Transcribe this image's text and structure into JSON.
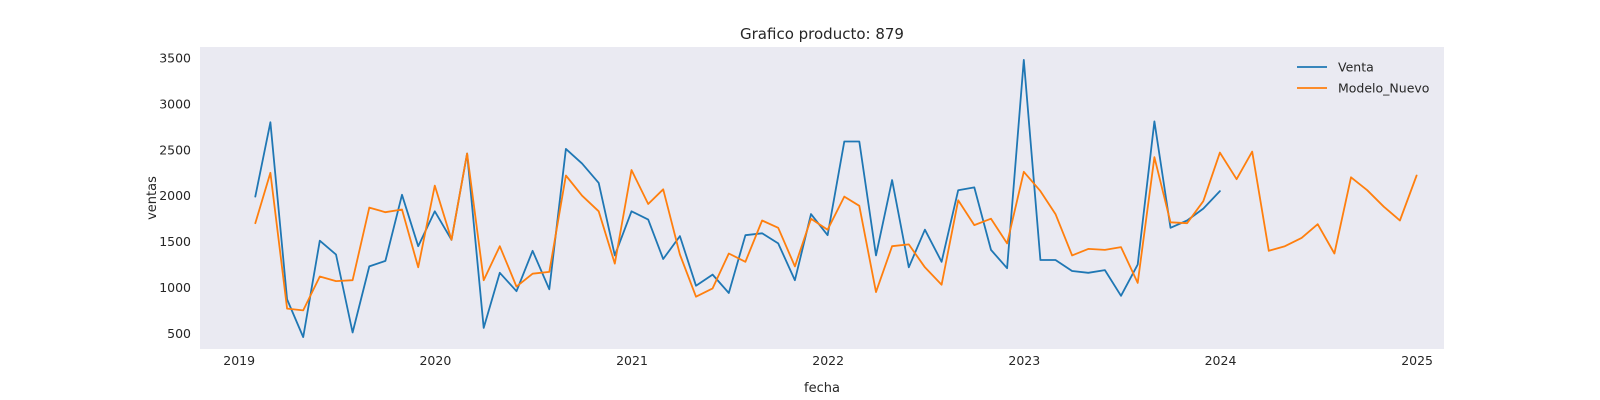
{
  "chart_data": {
    "type": "line",
    "title": "Grafico producto: 879",
    "xlabel": "fecha",
    "ylabel": "ventas",
    "xlim": [
      "2018-10-20",
      "2025-02-20"
    ],
    "ylim": [
      330,
      3620
    ],
    "x_ticks": [
      "2019",
      "2020",
      "2021",
      "2022",
      "2023",
      "2024",
      "2025"
    ],
    "y_ticks": [
      500,
      1000,
      1500,
      2000,
      2500,
      3000,
      3500
    ],
    "grid": false,
    "legend": "top-right",
    "colors": {
      "plot_background": "#eaeaf2",
      "Venta": "#1f77b4",
      "Modelo_Nuevo": "#ff7f0e"
    },
    "series": [
      {
        "name": "Venta",
        "x": [
          "2019-01-31",
          "2019-02-28",
          "2019-03-31",
          "2019-04-30",
          "2019-05-31",
          "2019-06-30",
          "2019-07-31",
          "2019-08-31",
          "2019-09-30",
          "2019-10-31",
          "2019-11-30",
          "2019-12-31",
          "2020-01-31",
          "2020-02-29",
          "2020-03-31",
          "2020-04-30",
          "2020-05-31",
          "2020-06-30",
          "2020-07-31",
          "2020-08-31",
          "2020-09-30",
          "2020-10-31",
          "2020-11-30",
          "2020-12-31",
          "2021-01-31",
          "2021-02-28",
          "2021-03-31",
          "2021-04-30",
          "2021-05-31",
          "2021-06-30",
          "2021-07-31",
          "2021-08-31",
          "2021-09-30",
          "2021-10-31",
          "2021-11-30",
          "2021-12-31",
          "2022-01-31",
          "2022-02-28",
          "2022-03-31",
          "2022-04-30",
          "2022-05-31",
          "2022-06-30",
          "2022-07-31",
          "2022-08-31",
          "2022-09-30",
          "2022-10-31",
          "2022-11-30",
          "2022-12-31",
          "2023-01-31",
          "2023-02-28",
          "2023-03-31",
          "2023-04-30",
          "2023-05-31",
          "2023-06-30",
          "2023-07-31",
          "2023-08-31",
          "2023-09-30",
          "2023-10-31",
          "2023-11-30",
          "2023-12-31"
        ],
        "values": [
          1990,
          2800,
          870,
          460,
          1510,
          1360,
          510,
          1230,
          1290,
          2010,
          1450,
          1830,
          1520,
          2460,
          560,
          1160,
          960,
          1400,
          980,
          2510,
          2350,
          2140,
          1350,
          1830,
          1740,
          1310,
          1560,
          1020,
          1140,
          940,
          1570,
          1590,
          1480,
          1080,
          1800,
          1570,
          2590,
          2590,
          1350,
          2170,
          1220,
          1630,
          1280,
          2060,
          2090,
          1410,
          1210,
          3480,
          1300,
          1300,
          1180,
          1160,
          1190,
          910,
          1250,
          2810,
          1650,
          1730,
          1860,
          2050
        ]
      },
      {
        "name": "Modelo_Nuevo",
        "x": [
          "2019-01-31",
          "2019-02-28",
          "2019-03-31",
          "2019-04-30",
          "2019-05-31",
          "2019-06-30",
          "2019-07-31",
          "2019-08-31",
          "2019-09-30",
          "2019-10-31",
          "2019-11-30",
          "2019-12-31",
          "2020-01-31",
          "2020-02-29",
          "2020-03-31",
          "2020-04-30",
          "2020-05-31",
          "2020-06-30",
          "2020-07-31",
          "2020-08-31",
          "2020-09-30",
          "2020-10-31",
          "2020-11-30",
          "2020-12-31",
          "2021-01-31",
          "2021-02-28",
          "2021-03-31",
          "2021-04-30",
          "2021-05-31",
          "2021-06-30",
          "2021-07-31",
          "2021-08-31",
          "2021-09-30",
          "2021-10-31",
          "2021-11-30",
          "2021-12-31",
          "2022-01-31",
          "2022-02-28",
          "2022-03-31",
          "2022-04-30",
          "2022-05-31",
          "2022-06-30",
          "2022-07-31",
          "2022-08-31",
          "2022-09-30",
          "2022-10-31",
          "2022-11-30",
          "2022-12-31",
          "2023-01-31",
          "2023-02-28",
          "2023-03-31",
          "2023-04-30",
          "2023-05-31",
          "2023-06-30",
          "2023-07-31",
          "2023-08-31",
          "2023-09-30",
          "2023-10-31",
          "2023-11-30",
          "2023-12-31",
          "2024-01-31",
          "2024-02-29",
          "2024-03-31",
          "2024-04-30",
          "2024-05-31",
          "2024-06-30",
          "2024-07-31",
          "2024-08-31",
          "2024-09-30",
          "2024-10-31",
          "2024-11-30",
          "2024-12-31"
        ],
        "values": [
          1700,
          2250,
          770,
          750,
          1120,
          1070,
          1080,
          1870,
          1820,
          1850,
          1220,
          2110,
          1520,
          2460,
          1080,
          1450,
          1010,
          1150,
          1170,
          2220,
          2000,
          1830,
          1260,
          2280,
          1910,
          2070,
          1360,
          900,
          990,
          1370,
          1280,
          1730,
          1650,
          1230,
          1750,
          1630,
          1990,
          1890,
          950,
          1450,
          1470,
          1220,
          1030,
          1950,
          1680,
          1750,
          1480,
          2260,
          2050,
          1800,
          1350,
          1420,
          1410,
          1440,
          1050,
          2420,
          1710,
          1700,
          1940,
          2470,
          2180,
          2480,
          1400,
          1450,
          1540,
          1690,
          1370,
          2200,
          2060,
          1880,
          1730,
          2220
        ]
      }
    ]
  }
}
